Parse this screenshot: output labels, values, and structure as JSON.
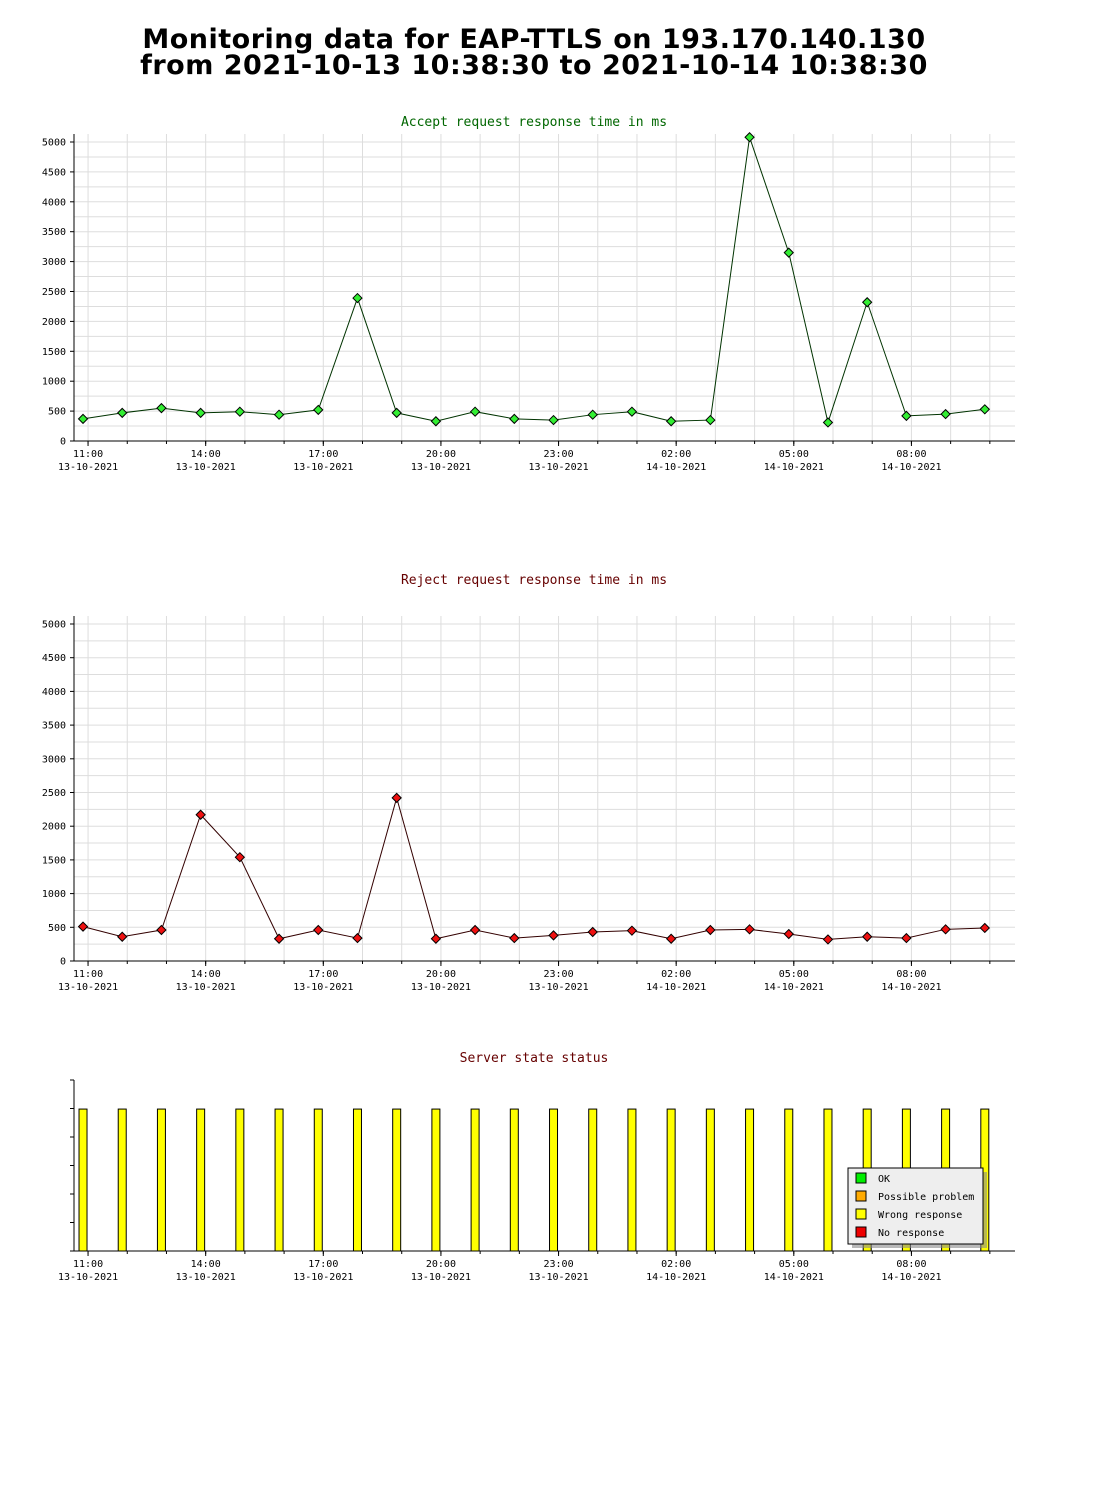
{
  "header": {
    "title_line1": "Monitoring data for EAP-TTLS on 193.170.140.130",
    "title_line2": "from 2021-10-13 10:38:30 to 2021-10-14 10:38:30"
  },
  "x_axis": {
    "ticks": [
      {
        "time": "11:00",
        "date": "13-10-2021"
      },
      {
        "time": "14:00",
        "date": "13-10-2021"
      },
      {
        "time": "17:00",
        "date": "13-10-2021"
      },
      {
        "time": "20:00",
        "date": "13-10-2021"
      },
      {
        "time": "23:00",
        "date": "13-10-2021"
      },
      {
        "time": "02:00",
        "date": "14-10-2021"
      },
      {
        "time": "05:00",
        "date": "14-10-2021"
      },
      {
        "time": "08:00",
        "date": "14-10-2021"
      }
    ]
  },
  "chart_data": [
    {
      "type": "line",
      "title": "Accept request response time in ms",
      "title_color": "#006600",
      "line_color": "#003300",
      "marker_color": "#33ee33",
      "ylim": [
        0,
        5000
      ],
      "yticks": [
        0,
        500,
        1000,
        1500,
        2000,
        2500,
        3000,
        3500,
        4000,
        4500,
        5000
      ],
      "grid": true,
      "x_hours": [
        0.23,
        1.23,
        2.23,
        3.23,
        4.23,
        5.23,
        6.23,
        7.23,
        8.23,
        9.23,
        10.23,
        11.23,
        12.23,
        13.23,
        14.23,
        15.23,
        16.23,
        17.23,
        18.23,
        19.23,
        20.23,
        21.23,
        22.23,
        23.23
      ],
      "values": [
        370,
        470,
        550,
        470,
        490,
        440,
        520,
        2390,
        470,
        330,
        490,
        370,
        350,
        440,
        490,
        330,
        350,
        5080,
        3150,
        310,
        2320,
        420,
        450,
        530
      ]
    },
    {
      "type": "line",
      "title": "Reject request response time in ms",
      "title_color": "#660000",
      "line_color": "#330000",
      "marker_color": "#ee1111",
      "ylim": [
        0,
        5000
      ],
      "yticks": [
        0,
        500,
        1000,
        1500,
        2000,
        2500,
        3000,
        3500,
        4000,
        4500,
        5000
      ],
      "grid": true,
      "x_hours": [
        0.23,
        1.23,
        2.23,
        3.23,
        4.23,
        5.23,
        6.23,
        7.23,
        8.23,
        9.23,
        10.23,
        11.23,
        12.23,
        13.23,
        14.23,
        15.23,
        16.23,
        17.23,
        18.23,
        19.23,
        20.23,
        21.23,
        22.23,
        23.23
      ],
      "values": [
        510,
        360,
        460,
        2170,
        1540,
        330,
        460,
        340,
        2420,
        330,
        460,
        340,
        380,
        430,
        450,
        330,
        460,
        470,
        400,
        320,
        360,
        340,
        470,
        490
      ]
    },
    {
      "type": "bar",
      "title": "Server state status",
      "title_color": "#660000",
      "bar_color": "#ffff00",
      "bar_level": 0.83,
      "x_hours": [
        0.23,
        1.23,
        2.23,
        3.23,
        4.23,
        5.23,
        6.23,
        7.23,
        8.23,
        9.23,
        10.23,
        11.23,
        12.23,
        13.23,
        14.23,
        15.23,
        16.23,
        17.23,
        18.23,
        19.23,
        20.23,
        21.23,
        22.23,
        23.23
      ],
      "states": [
        "Wrong response",
        "Wrong response",
        "Wrong response",
        "Wrong response",
        "Wrong response",
        "Wrong response",
        "Wrong response",
        "Wrong response",
        "Wrong response",
        "Wrong response",
        "Wrong response",
        "Wrong response",
        "Wrong response",
        "Wrong response",
        "Wrong response",
        "Wrong response",
        "Wrong response",
        "Wrong response",
        "Wrong response",
        "Wrong response",
        "Wrong response",
        "Wrong response",
        "Wrong response",
        "Wrong response"
      ],
      "legend": [
        {
          "label": "OK",
          "color": "#00ee00"
        },
        {
          "label": "Possible problem",
          "color": "#ffaa00"
        },
        {
          "label": "Wrong response",
          "color": "#ffff00"
        },
        {
          "label": "No response",
          "color": "#ee0000"
        }
      ],
      "legend_position": "bottom-right"
    }
  ]
}
